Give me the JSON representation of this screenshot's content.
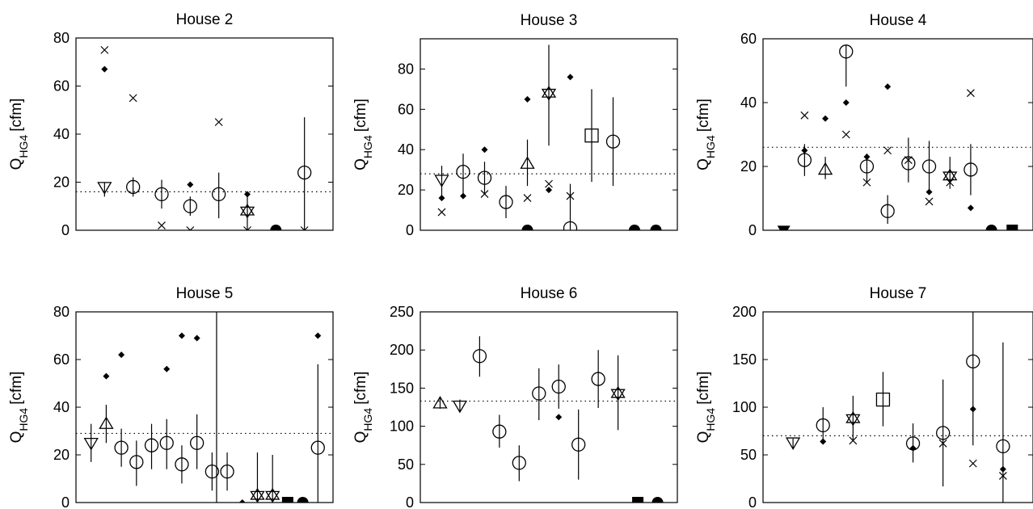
{
  "chart_data": [
    {
      "type": "scatter",
      "title": "House 2",
      "ylabel": "Q",
      "ylabel_sub": "HG4",
      "ylabel_unit": "[cfm]",
      "ylim": [
        0,
        80
      ],
      "yticks": [
        "0",
        "20",
        "40",
        "60",
        "80"
      ],
      "reference_line": 16,
      "markers": [
        {
          "x": 1,
          "y": 18,
          "shape": "triangle-down",
          "err": [
            14,
            20
          ]
        },
        {
          "x": 1,
          "y": 75,
          "shape": "x"
        },
        {
          "x": 1,
          "y": 67,
          "shape": "diamond"
        },
        {
          "x": 2,
          "y": 18,
          "shape": "circle",
          "err": [
            14,
            22
          ]
        },
        {
          "x": 2,
          "y": 55,
          "shape": "x"
        },
        {
          "x": 3,
          "y": 15,
          "shape": "circle",
          "err": [
            9,
            21
          ]
        },
        {
          "x": 3,
          "y": 2,
          "shape": "x"
        },
        {
          "x": 4,
          "y": 10,
          "shape": "circle",
          "err": [
            6,
            14
          ]
        },
        {
          "x": 4,
          "y": 19,
          "shape": "diamond"
        },
        {
          "x": 4,
          "y": 0,
          "shape": "x"
        },
        {
          "x": 5,
          "y": 15,
          "shape": "circle",
          "err": [
            5,
            24
          ]
        },
        {
          "x": 5,
          "y": 45,
          "shape": "x"
        },
        {
          "x": 6,
          "y": 8,
          "shape": "star",
          "err": [
            0,
            15
          ]
        },
        {
          "x": 6,
          "y": 15,
          "shape": "diamond"
        },
        {
          "x": 6,
          "y": 0,
          "shape": "x"
        },
        {
          "x": 7,
          "y": 0,
          "shape": "filled-circle"
        },
        {
          "x": 8,
          "y": 24,
          "shape": "circle",
          "err": [
            0,
            47
          ]
        },
        {
          "x": 8,
          "y": 0,
          "shape": "x"
        }
      ]
    },
    {
      "type": "scatter",
      "title": "House 3",
      "ylabel": "Q",
      "ylabel_sub": "HG4",
      "ylabel_unit": "[cfm]",
      "ylim": [
        0,
        95
      ],
      "yticks": [
        "0",
        "20",
        "40",
        "60",
        "80"
      ],
      "reference_line": 28,
      "markers": [
        {
          "x": 1,
          "y": 25,
          "shape": "triangle-down",
          "err": [
            17,
            32
          ]
        },
        {
          "x": 1,
          "y": 16,
          "shape": "diamond"
        },
        {
          "x": 1,
          "y": 9,
          "shape": "x"
        },
        {
          "x": 2,
          "y": 29,
          "shape": "circle",
          "err": [
            18,
            38
          ]
        },
        {
          "x": 2,
          "y": 17,
          "shape": "diamond"
        },
        {
          "x": 3,
          "y": 26,
          "shape": "circle",
          "err": [
            18,
            34
          ]
        },
        {
          "x": 3,
          "y": 40,
          "shape": "diamond"
        },
        {
          "x": 3,
          "y": 18,
          "shape": "x"
        },
        {
          "x": 4,
          "y": 14,
          "shape": "circle",
          "err": [
            6,
            22
          ]
        },
        {
          "x": 5,
          "y": 0,
          "shape": "filled-circle"
        },
        {
          "x": 5,
          "y": 33,
          "shape": "triangle-up",
          "err": [
            22,
            45
          ]
        },
        {
          "x": 5,
          "y": 65,
          "shape": "diamond"
        },
        {
          "x": 5,
          "y": 16,
          "shape": "x"
        },
        {
          "x": 6,
          "y": 68,
          "shape": "star",
          "err": [
            42,
            92
          ]
        },
        {
          "x": 6,
          "y": 20,
          "shape": "diamond"
        },
        {
          "x": 6,
          "y": 23,
          "shape": "x"
        },
        {
          "x": 7,
          "y": 1,
          "shape": "circle",
          "err": [
            0,
            23
          ]
        },
        {
          "x": 7,
          "y": 76,
          "shape": "diamond"
        },
        {
          "x": 7,
          "y": 17,
          "shape": "x"
        },
        {
          "x": 8,
          "y": 47,
          "shape": "square",
          "err": [
            24,
            70
          ]
        },
        {
          "x": 9,
          "y": 44,
          "shape": "circle",
          "err": [
            22,
            66
          ]
        },
        {
          "x": 10,
          "y": 0,
          "shape": "filled-circle"
        },
        {
          "x": 11,
          "y": 0,
          "shape": "filled-circle"
        }
      ]
    },
    {
      "type": "scatter",
      "title": "House 4",
      "ylabel": "Q",
      "ylabel_sub": "HG4",
      "ylabel_unit": "[cfm]",
      "ylim": [
        0,
        60
      ],
      "yticks": [
        "0",
        "20",
        "40",
        "60"
      ],
      "reference_line": 26,
      "markers": [
        {
          "x": 1,
          "y": 0,
          "shape": "filled-triangle-down"
        },
        {
          "x": 2,
          "y": 22,
          "shape": "circle",
          "err": [
            17,
            27
          ]
        },
        {
          "x": 2,
          "y": 36,
          "shape": "x"
        },
        {
          "x": 2,
          "y": 25,
          "shape": "diamond"
        },
        {
          "x": 3,
          "y": 19,
          "shape": "triangle-up",
          "err": [
            16,
            23
          ]
        },
        {
          "x": 3,
          "y": 35,
          "shape": "diamond"
        },
        {
          "x": 4,
          "y": 56,
          "shape": "circle",
          "err": [
            45,
            58
          ]
        },
        {
          "x": 4,
          "y": 40,
          "shape": "diamond"
        },
        {
          "x": 4,
          "y": 30,
          "shape": "x"
        },
        {
          "x": 5,
          "y": 20,
          "shape": "circle",
          "err": [
            15,
            24
          ]
        },
        {
          "x": 5,
          "y": 23,
          "shape": "diamond"
        },
        {
          "x": 5,
          "y": 15,
          "shape": "x"
        },
        {
          "x": 6,
          "y": 6,
          "shape": "circle",
          "err": [
            2,
            11
          ]
        },
        {
          "x": 6,
          "y": 45,
          "shape": "diamond"
        },
        {
          "x": 6,
          "y": 25,
          "shape": "x"
        },
        {
          "x": 7,
          "y": 21,
          "shape": "circle",
          "err": [
            15,
            29
          ]
        },
        {
          "x": 7,
          "y": 22,
          "shape": "x"
        },
        {
          "x": 8,
          "y": 20,
          "shape": "circle",
          "err": [
            12,
            28
          ]
        },
        {
          "x": 8,
          "y": 12,
          "shape": "diamond"
        },
        {
          "x": 8,
          "y": 9,
          "shape": "x"
        },
        {
          "x": 9,
          "y": 17,
          "shape": "star",
          "err": [
            13,
            23
          ]
        },
        {
          "x": 9,
          "y": 15,
          "shape": "x"
        },
        {
          "x": 10,
          "y": 19,
          "shape": "circle",
          "err": [
            11,
            27
          ]
        },
        {
          "x": 10,
          "y": 43,
          "shape": "x"
        },
        {
          "x": 10,
          "y": 7,
          "shape": "diamond"
        },
        {
          "x": 11,
          "y": 0,
          "shape": "filled-circle"
        },
        {
          "x": 12,
          "y": 0,
          "shape": "filled-square"
        }
      ]
    },
    {
      "type": "scatter",
      "title": "House 5",
      "ylabel": "Q",
      "ylabel_sub": "HG4",
      "ylabel_unit": "[cfm]",
      "ylim": [
        0,
        80
      ],
      "yticks": [
        "0",
        "20",
        "40",
        "60",
        "80"
      ],
      "reference_line": 29,
      "divider_x": 9.3,
      "markers": [
        {
          "x": 1,
          "y": 25,
          "shape": "triangle-down",
          "err": [
            17,
            33
          ]
        },
        {
          "x": 2,
          "y": 33,
          "shape": "triangle-up",
          "err": [
            25,
            41
          ]
        },
        {
          "x": 2,
          "y": 53,
          "shape": "diamond"
        },
        {
          "x": 3,
          "y": 23,
          "shape": "circle",
          "err": [
            15,
            31
          ]
        },
        {
          "x": 3,
          "y": 62,
          "shape": "diamond"
        },
        {
          "x": 4,
          "y": 17,
          "shape": "circle",
          "err": [
            7,
            26
          ]
        },
        {
          "x": 5,
          "y": 24,
          "shape": "circle",
          "err": [
            14,
            33
          ]
        },
        {
          "x": 6,
          "y": 25,
          "shape": "circle",
          "err": [
            14,
            35
          ]
        },
        {
          "x": 6,
          "y": 56,
          "shape": "diamond"
        },
        {
          "x": 7,
          "y": 16,
          "shape": "circle",
          "err": [
            8,
            24
          ]
        },
        {
          "x": 7,
          "y": 70,
          "shape": "diamond"
        },
        {
          "x": 8,
          "y": 25,
          "shape": "circle",
          "err": [
            14,
            37
          ]
        },
        {
          "x": 8,
          "y": 69,
          "shape": "diamond"
        },
        {
          "x": 9,
          "y": 13,
          "shape": "circle",
          "err": [
            5,
            21
          ]
        },
        {
          "x": 10,
          "y": 13,
          "shape": "circle",
          "err": [
            5,
            21
          ]
        },
        {
          "x": 11,
          "y": 0,
          "shape": "diamond"
        },
        {
          "x": 12,
          "y": 3,
          "shape": "star",
          "err": [
            0,
            21
          ]
        },
        {
          "x": 13,
          "y": 3,
          "shape": "star",
          "err": [
            0,
            20
          ]
        },
        {
          "x": 14,
          "y": 0,
          "shape": "filled-square"
        },
        {
          "x": 15,
          "y": 0,
          "shape": "filled-circle"
        },
        {
          "x": 16,
          "y": 23,
          "shape": "circle",
          "err": [
            0,
            58
          ]
        },
        {
          "x": 16,
          "y": 70,
          "shape": "diamond"
        }
      ]
    },
    {
      "type": "scatter",
      "title": "House 6",
      "ylabel": "Q",
      "ylabel_sub": "HG4",
      "ylabel_unit": "[cfm]",
      "ylim": [
        0,
        250
      ],
      "yticks": [
        "0",
        "50",
        "100",
        "150",
        "200",
        "250"
      ],
      "reference_line": 133,
      "markers": [
        {
          "x": 1,
          "y": 130,
          "shape": "triangle-up",
          "err": [
            123,
            138
          ]
        },
        {
          "x": 2,
          "y": 127,
          "shape": "triangle-down",
          "err": [
            120,
            135
          ]
        },
        {
          "x": 3,
          "y": 192,
          "shape": "circle",
          "err": [
            165,
            218
          ]
        },
        {
          "x": 4,
          "y": 93,
          "shape": "circle",
          "err": [
            72,
            115
          ]
        },
        {
          "x": 5,
          "y": 52,
          "shape": "circle",
          "err": [
            28,
            75
          ]
        },
        {
          "x": 6,
          "y": 143,
          "shape": "circle",
          "err": [
            108,
            176
          ]
        },
        {
          "x": 7,
          "y": 152,
          "shape": "circle",
          "err": [
            123,
            181
          ]
        },
        {
          "x": 7,
          "y": 112,
          "shape": "diamond"
        },
        {
          "x": 8,
          "y": 76,
          "shape": "circle",
          "err": [
            30,
            122
          ]
        },
        {
          "x": 9,
          "y": 162,
          "shape": "circle",
          "err": [
            124,
            200
          ]
        },
        {
          "x": 10,
          "y": 143,
          "shape": "star",
          "err": [
            95,
            193
          ]
        },
        {
          "x": 11,
          "y": 0,
          "shape": "filled-square"
        },
        {
          "x": 12,
          "y": 0,
          "shape": "filled-circle"
        }
      ]
    },
    {
      "type": "scatter",
      "title": "House 7",
      "ylabel": "Q",
      "ylabel_sub": "HG4",
      "ylabel_unit": "[cfm]",
      "ylim": [
        0,
        200
      ],
      "yticks": [
        "0",
        "50",
        "100",
        "150",
        "200"
      ],
      "reference_line": 70,
      "markers": [
        {
          "x": 1,
          "y": 63,
          "shape": "triangle-down",
          "err": [
            57,
            67
          ]
        },
        {
          "x": 2,
          "y": 81,
          "shape": "circle",
          "err": [
            62,
            100
          ]
        },
        {
          "x": 2,
          "y": 64,
          "shape": "diamond"
        },
        {
          "x": 3,
          "y": 88,
          "shape": "star",
          "err": [
            65,
            112
          ]
        },
        {
          "x": 3,
          "y": 65,
          "shape": "x"
        },
        {
          "x": 4,
          "y": 108,
          "shape": "square",
          "err": [
            80,
            137
          ]
        },
        {
          "x": 5,
          "y": 62,
          "shape": "circle",
          "err": [
            42,
            83
          ]
        },
        {
          "x": 5,
          "y": 57,
          "shape": "diamond"
        },
        {
          "x": 6,
          "y": 73,
          "shape": "circle",
          "err": [
            17,
            129
          ]
        },
        {
          "x": 6,
          "y": 62,
          "shape": "x"
        },
        {
          "x": 7,
          "y": 148,
          "shape": "circle",
          "err": [
            60,
            200
          ]
        },
        {
          "x": 7,
          "y": 98,
          "shape": "diamond"
        },
        {
          "x": 7,
          "y": 41,
          "shape": "x"
        },
        {
          "x": 8,
          "y": 59,
          "shape": "circle",
          "err": [
            0,
            168
          ]
        },
        {
          "x": 8,
          "y": 35,
          "shape": "diamond"
        },
        {
          "x": 8,
          "y": 28,
          "shape": "x"
        }
      ]
    }
  ]
}
